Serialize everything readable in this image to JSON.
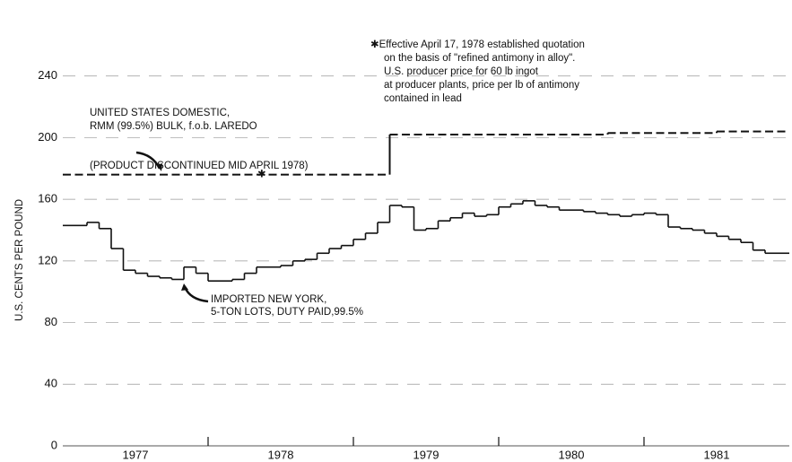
{
  "chart_data": {
    "type": "step",
    "y_axis_label": "U.S. CENTS PER POUND",
    "categories": [
      null,
      null,
      null,
      null,
      null,
      "1977",
      null,
      null,
      null,
      null,
      null,
      null,
      null,
      null,
      null,
      null,
      null,
      "1978",
      null,
      null,
      null,
      null,
      null,
      null,
      null,
      null,
      null,
      null,
      null,
      "1979",
      null,
      null,
      null,
      null,
      null,
      null,
      null,
      null,
      null,
      null,
      null,
      "1980",
      null,
      null,
      null,
      null,
      null,
      null,
      null,
      null,
      null,
      null,
      null,
      "1981",
      null,
      null,
      null,
      null,
      null,
      null
    ],
    "series": [
      {
        "color": "#111111",
        "dashed": true,
        "values": [
          176,
          176,
          176,
          176,
          176,
          176,
          176,
          176,
          176,
          176,
          176,
          176,
          176,
          176,
          176,
          176,
          176,
          176,
          176,
          176,
          176,
          176,
          176,
          176,
          176,
          176,
          176,
          202,
          202,
          202,
          202,
          202,
          202,
          202,
          202,
          202,
          202,
          202,
          202,
          202,
          202,
          202,
          202,
          202,
          202,
          203,
          203,
          203,
          203,
          203,
          203,
          203,
          203,
          203,
          204,
          204,
          204,
          204,
          204,
          204
        ]
      },
      {
        "color": "#111111",
        "dashed": false,
        "values": [
          143,
          143,
          145,
          141,
          128,
          114,
          112,
          110,
          109,
          108,
          116,
          112,
          107,
          107,
          108,
          112,
          116,
          116,
          117,
          120,
          121,
          125,
          128,
          130,
          134,
          138,
          145,
          156,
          155,
          140,
          141,
          146,
          148,
          151,
          149,
          150,
          155,
          157,
          159,
          156,
          155,
          153,
          153,
          152,
          151,
          150,
          149,
          150,
          151,
          150,
          142,
          141,
          140,
          138,
          136,
          134,
          132,
          127,
          125,
          125
        ]
      }
    ],
    "ylim": [
      0,
      280
    ],
    "yticks": [
      0,
      40,
      80,
      120,
      160,
      200,
      240
    ],
    "grid": true,
    "annotations": [
      [
        "✱Effective April 17, 1978 established quotation",
        "on the basis of \"refined antimony in alloy\".",
        "U.S. producer price for 60 lb ingot",
        "at producer plants, price per lb of antimony",
        "contained in lead"
      ],
      [
        "UNITED STATES DOMESTIC,",
        "RMM (99.5%) BULK, f.o.b. LAREDO",
        "(PRODUCT DISCONTINUED MID APRIL 1978)"
      ],
      [
        "IMPORTED NEW YORK,",
        "5-TON LOTS, DUTY PAID,99.5%"
      ],
      [
        "✱"
      ]
    ]
  }
}
